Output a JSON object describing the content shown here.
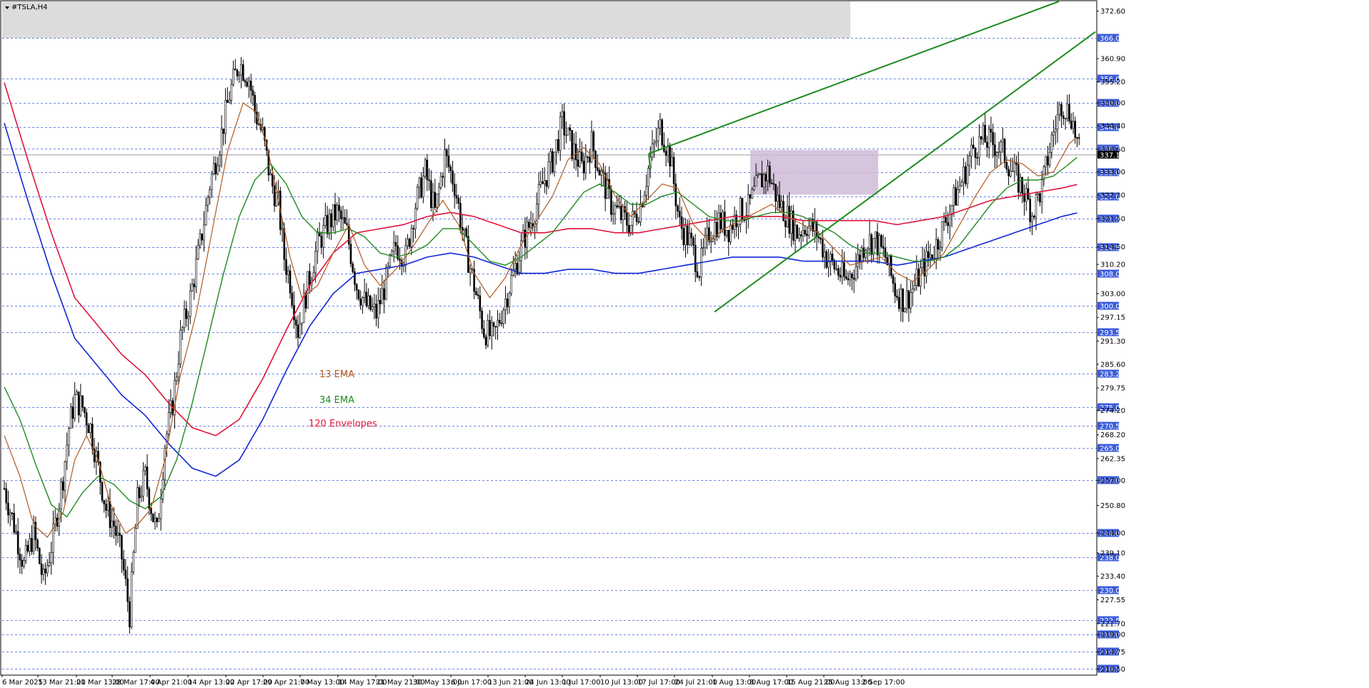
{
  "window": {
    "symbol_title": "#TSLA,H4"
  },
  "colors": {
    "background": "#ffffff",
    "grid": "#3b5bdb",
    "ema13": "#b25a1e",
    "ema34": "#1f8a1f",
    "envelope_upper": "#e0143c",
    "envelope_lower": "#1226d6",
    "trendline": "#1f8a1f",
    "badge": "#3b5bdb",
    "current_badge": "#000000",
    "supply_zone": "#dcdcdc",
    "consolidation_box": "#cdb6d6"
  },
  "chart_data": {
    "type": "candlestick",
    "title": "#TSLA,H4",
    "ylim": [
      209.0,
      375.0
    ],
    "y_ticks": [
      "372.60",
      "360.90",
      "355.20",
      "350.00",
      "344.40",
      "338.60",
      "333.00",
      "327.30",
      "321.50",
      "314.50",
      "310.20",
      "303.00",
      "297.15",
      "291.30",
      "285.60",
      "279.75",
      "274.20",
      "268.20",
      "262.35",
      "257.00",
      "250.80",
      "244.00",
      "239.10",
      "233.40",
      "227.55",
      "221.70",
      "219.00",
      "214.75",
      "210.50"
    ],
    "price_levels": [
      "366.00",
      "356.00",
      "350.00",
      "344.00",
      "338.75",
      "333.00",
      "327.00",
      "321.50",
      "314.50",
      "308.00",
      "300.00",
      "293.50",
      "283.25",
      "275.00",
      "270.50",
      "265.00",
      "257.00",
      "244.00",
      "238.00",
      "230.00",
      "222.50",
      "219.00",
      "214.75",
      "210.50"
    ],
    "current_price": "337.17",
    "x_labels": [
      "6 Mar 2025",
      "13 Mar 21:00",
      "21 Mar 13:00",
      "28 Mar 17:00",
      "4 Apr 21:00",
      "14 Apr 13:00",
      "22 Apr 17:00",
      "29 Apr 21:00",
      "7 May 13:00",
      "14 May 17:00",
      "21 May 21:00",
      "30 May 13:00",
      "6 Jun 17:00",
      "13 Jun 21:00",
      "24 Jun 13:00",
      "1 Jul 17:00",
      "10 Jul 13:00",
      "17 Jul 17:00",
      "24 Jul 21:00",
      "1 Aug 13:00",
      "8 Aug 17:00",
      "15 Aug 21:00",
      "25 Aug 13:00",
      "2 Sep 17:00"
    ],
    "series": [
      {
        "name": "13 EMA",
        "color": "#b25a1e"
      },
      {
        "name": "34 EMA",
        "color": "#1f8a1f"
      },
      {
        "name": "120 Envelopes",
        "color": "#e0143c"
      }
    ],
    "close_path": [
      [
        0,
        255
      ],
      [
        5,
        246
      ],
      [
        10,
        236
      ],
      [
        15,
        244
      ],
      [
        20,
        232
      ],
      [
        25,
        243
      ],
      [
        30,
        258
      ],
      [
        33,
        270
      ],
      [
        36,
        277
      ],
      [
        40,
        275
      ],
      [
        44,
        270
      ],
      [
        48,
        260
      ],
      [
        52,
        250
      ],
      [
        56,
        246
      ],
      [
        60,
        238
      ],
      [
        64,
        224
      ],
      [
        68,
        252
      ],
      [
        72,
        258
      ],
      [
        76,
        248
      ],
      [
        78,
        244
      ],
      [
        82,
        266
      ],
      [
        86,
        276
      ],
      [
        90,
        292
      ],
      [
        95,
        302
      ],
      [
        100,
        315
      ],
      [
        105,
        330
      ],
      [
        110,
        340
      ],
      [
        115,
        352
      ],
      [
        120,
        360
      ],
      [
        125,
        356
      ],
      [
        128,
        348
      ],
      [
        132,
        342
      ],
      [
        136,
        331
      ],
      [
        140,
        325
      ],
      [
        143,
        312
      ],
      [
        146,
        306
      ],
      [
        150,
        294
      ],
      [
        155,
        305
      ],
      [
        160,
        315
      ],
      [
        165,
        320
      ],
      [
        170,
        323
      ],
      [
        175,
        318
      ],
      [
        180,
        305
      ],
      [
        185,
        300
      ],
      [
        190,
        298
      ],
      [
        195,
        306
      ],
      [
        200,
        315
      ],
      [
        205,
        312
      ],
      [
        210,
        325
      ],
      [
        215,
        333
      ],
      [
        220,
        323
      ],
      [
        225,
        337
      ],
      [
        230,
        330
      ],
      [
        235,
        316
      ],
      [
        240,
        305
      ],
      [
        245,
        294
      ],
      [
        250,
        292
      ],
      [
        255,
        300
      ],
      [
        260,
        308
      ],
      [
        265,
        316
      ],
      [
        270,
        322
      ],
      [
        275,
        330
      ],
      [
        280,
        336
      ],
      [
        285,
        345
      ],
      [
        290,
        339
      ],
      [
        295,
        334
      ],
      [
        300,
        340
      ],
      [
        305,
        332
      ],
      [
        310,
        325
      ],
      [
        315,
        322
      ],
      [
        320,
        320
      ],
      [
        325,
        325
      ],
      [
        330,
        336
      ],
      [
        335,
        344
      ],
      [
        340,
        337
      ],
      [
        345,
        320
      ],
      [
        350,
        316
      ],
      [
        355,
        309
      ],
      [
        360,
        318
      ],
      [
        365,
        321
      ],
      [
        370,
        319
      ],
      [
        375,
        323
      ],
      [
        380,
        324
      ],
      [
        385,
        330
      ],
      [
        390,
        333
      ],
      [
        395,
        326
      ],
      [
        400,
        322
      ],
      [
        405,
        318
      ],
      [
        410,
        320
      ],
      [
        415,
        318
      ],
      [
        420,
        312
      ],
      [
        425,
        309
      ],
      [
        430,
        306
      ],
      [
        435,
        310
      ],
      [
        440,
        316
      ],
      [
        445,
        316
      ],
      [
        450,
        312
      ],
      [
        455,
        304
      ],
      [
        460,
        301
      ],
      [
        465,
        305
      ],
      [
        470,
        310
      ],
      [
        475,
        314
      ],
      [
        480,
        320
      ],
      [
        485,
        326
      ],
      [
        490,
        332
      ],
      [
        495,
        339
      ],
      [
        500,
        341
      ],
      [
        505,
        340
      ],
      [
        510,
        338
      ],
      [
        515,
        333
      ],
      [
        520,
        329
      ],
      [
        525,
        323
      ],
      [
        530,
        329
      ],
      [
        535,
        341
      ],
      [
        540,
        350
      ],
      [
        545,
        347
      ],
      [
        549,
        338
      ]
    ],
    "ema13_path": [
      [
        0,
        268
      ],
      [
        8,
        258
      ],
      [
        15,
        246
      ],
      [
        22,
        243
      ],
      [
        30,
        249
      ],
      [
        36,
        262
      ],
      [
        42,
        268
      ],
      [
        48,
        262
      ],
      [
        55,
        250
      ],
      [
        62,
        244
      ],
      [
        68,
        246
      ],
      [
        75,
        250
      ],
      [
        82,
        262
      ],
      [
        90,
        283
      ],
      [
        98,
        298
      ],
      [
        106,
        318
      ],
      [
        114,
        338
      ],
      [
        122,
        350
      ],
      [
        128,
        348
      ],
      [
        134,
        340
      ],
      [
        140,
        326
      ],
      [
        146,
        312
      ],
      [
        152,
        302
      ],
      [
        160,
        305
      ],
      [
        168,
        313
      ],
      [
        176,
        320
      ],
      [
        184,
        310
      ],
      [
        192,
        305
      ],
      [
        200,
        309
      ],
      [
        208,
        314
      ],
      [
        216,
        320
      ],
      [
        224,
        326
      ],
      [
        232,
        320
      ],
      [
        240,
        308
      ],
      [
        248,
        302
      ],
      [
        256,
        307
      ],
      [
        264,
        315
      ],
      [
        272,
        321
      ],
      [
        280,
        327
      ],
      [
        288,
        336
      ],
      [
        296,
        339
      ],
      [
        304,
        335
      ],
      [
        312,
        327
      ],
      [
        320,
        322
      ],
      [
        328,
        326
      ],
      [
        336,
        330
      ],
      [
        344,
        329
      ],
      [
        352,
        320
      ],
      [
        360,
        316
      ],
      [
        368,
        319
      ],
      [
        376,
        321
      ],
      [
        384,
        323
      ],
      [
        392,
        325
      ],
      [
        400,
        322
      ],
      [
        408,
        320
      ],
      [
        416,
        318
      ],
      [
        424,
        314
      ],
      [
        432,
        310
      ],
      [
        440,
        311
      ],
      [
        448,
        312
      ],
      [
        456,
        308
      ],
      [
        464,
        306
      ],
      [
        472,
        309
      ],
      [
        480,
        313
      ],
      [
        488,
        320
      ],
      [
        496,
        327
      ],
      [
        504,
        333
      ],
      [
        512,
        336
      ],
      [
        520,
        335
      ],
      [
        528,
        332
      ],
      [
        536,
        333
      ],
      [
        544,
        340
      ],
      [
        549,
        342
      ]
    ],
    "ema34_path": [
      [
        0,
        280
      ],
      [
        8,
        272
      ],
      [
        16,
        261
      ],
      [
        24,
        251
      ],
      [
        32,
        248
      ],
      [
        40,
        254
      ],
      [
        48,
        258
      ],
      [
        56,
        256
      ],
      [
        64,
        252
      ],
      [
        72,
        250
      ],
      [
        80,
        253
      ],
      [
        88,
        262
      ],
      [
        96,
        276
      ],
      [
        104,
        292
      ],
      [
        112,
        308
      ],
      [
        120,
        322
      ],
      [
        128,
        331
      ],
      [
        136,
        335
      ],
      [
        144,
        330
      ],
      [
        152,
        322
      ],
      [
        160,
        318
      ],
      [
        168,
        318
      ],
      [
        176,
        319
      ],
      [
        184,
        317
      ],
      [
        192,
        313
      ],
      [
        200,
        312
      ],
      [
        208,
        313
      ],
      [
        216,
        315
      ],
      [
        224,
        319
      ],
      [
        232,
        319
      ],
      [
        240,
        315
      ],
      [
        248,
        311
      ],
      [
        256,
        310
      ],
      [
        264,
        312
      ],
      [
        272,
        315
      ],
      [
        280,
        318
      ],
      [
        288,
        323
      ],
      [
        296,
        328
      ],
      [
        304,
        330
      ],
      [
        312,
        328
      ],
      [
        320,
        325
      ],
      [
        328,
        325
      ],
      [
        336,
        327
      ],
      [
        344,
        328
      ],
      [
        352,
        325
      ],
      [
        360,
        322
      ],
      [
        368,
        321
      ],
      [
        376,
        321
      ],
      [
        384,
        322
      ],
      [
        392,
        323
      ],
      [
        400,
        323
      ],
      [
        408,
        322
      ],
      [
        416,
        320
      ],
      [
        424,
        318
      ],
      [
        432,
        315
      ],
      [
        440,
        313
      ],
      [
        448,
        313
      ],
      [
        456,
        312
      ],
      [
        464,
        311
      ],
      [
        472,
        311
      ],
      [
        480,
        312
      ],
      [
        488,
        315
      ],
      [
        496,
        320
      ],
      [
        504,
        325
      ],
      [
        512,
        329
      ],
      [
        520,
        331
      ],
      [
        528,
        331
      ],
      [
        536,
        332
      ],
      [
        544,
        335
      ],
      [
        549,
        337
      ]
    ],
    "envelope_upper_path": [
      [
        0,
        355
      ],
      [
        12,
        336
      ],
      [
        24,
        318
      ],
      [
        36,
        302
      ],
      [
        48,
        295
      ],
      [
        60,
        288
      ],
      [
        72,
        283
      ],
      [
        84,
        276
      ],
      [
        96,
        270
      ],
      [
        108,
        268
      ],
      [
        120,
        272
      ],
      [
        132,
        282
      ],
      [
        144,
        294
      ],
      [
        156,
        305
      ],
      [
        168,
        313
      ],
      [
        180,
        318
      ],
      [
        192,
        319
      ],
      [
        204,
        320
      ],
      [
        216,
        322
      ],
      [
        228,
        323
      ],
      [
        240,
        322
      ],
      [
        252,
        320
      ],
      [
        264,
        318
      ],
      [
        276,
        318
      ],
      [
        288,
        319
      ],
      [
        300,
        319
      ],
      [
        312,
        318
      ],
      [
        324,
        318
      ],
      [
        336,
        319
      ],
      [
        348,
        320
      ],
      [
        360,
        321
      ],
      [
        372,
        322
      ],
      [
        384,
        322
      ],
      [
        396,
        322
      ],
      [
        408,
        321
      ],
      [
        420,
        321
      ],
      [
        432,
        321
      ],
      [
        444,
        321
      ],
      [
        456,
        320
      ],
      [
        468,
        321
      ],
      [
        480,
        322
      ],
      [
        492,
        324
      ],
      [
        504,
        326
      ],
      [
        516,
        327
      ],
      [
        528,
        328
      ],
      [
        540,
        329
      ],
      [
        549,
        330
      ]
    ],
    "envelope_lower_path": [
      [
        0,
        345
      ],
      [
        12,
        326
      ],
      [
        24,
        308
      ],
      [
        36,
        292
      ],
      [
        48,
        285
      ],
      [
        60,
        278
      ],
      [
        72,
        273
      ],
      [
        84,
        266
      ],
      [
        96,
        260
      ],
      [
        108,
        258
      ],
      [
        120,
        262
      ],
      [
        132,
        272
      ],
      [
        144,
        284
      ],
      [
        156,
        295
      ],
      [
        168,
        303
      ],
      [
        180,
        308
      ],
      [
        192,
        309
      ],
      [
        204,
        310
      ],
      [
        216,
        312
      ],
      [
        228,
        313
      ],
      [
        240,
        312
      ],
      [
        252,
        310
      ],
      [
        264,
        308
      ],
      [
        276,
        308
      ],
      [
        288,
        309
      ],
      [
        300,
        309
      ],
      [
        312,
        308
      ],
      [
        324,
        308
      ],
      [
        336,
        309
      ],
      [
        348,
        310
      ],
      [
        360,
        311
      ],
      [
        372,
        312
      ],
      [
        384,
        312
      ],
      [
        396,
        312
      ],
      [
        408,
        311
      ],
      [
        420,
        311
      ],
      [
        432,
        311
      ],
      [
        444,
        311
      ],
      [
        456,
        310
      ],
      [
        468,
        311
      ],
      [
        480,
        312
      ],
      [
        492,
        314
      ],
      [
        504,
        316
      ],
      [
        516,
        318
      ],
      [
        528,
        320
      ],
      [
        540,
        322
      ],
      [
        549,
        323
      ]
    ],
    "annotations": [
      {
        "text": "13 EMA",
        "color": "#b25a1e"
      },
      {
        "text": "34 EMA",
        "color": "#1f8a1f"
      },
      {
        "text": "120 Envelopes",
        "color": "#e0143c"
      }
    ]
  }
}
